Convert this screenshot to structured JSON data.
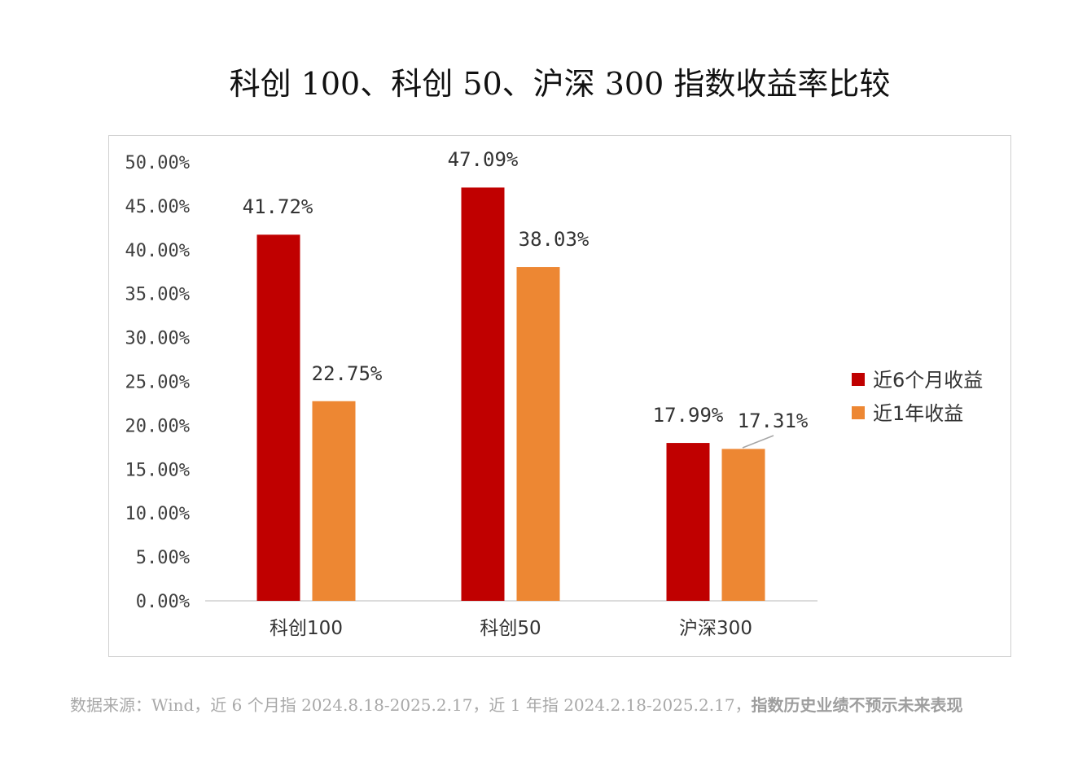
{
  "chart_data": {
    "type": "bar",
    "title": "科创 100、科创 50、沪深 300 指数收益率比较",
    "categories": [
      "科创100",
      "科创50",
      "沪深300"
    ],
    "series": [
      {
        "name": "近6个月收益",
        "color": "#c00000",
        "values": [
          41.72,
          47.09,
          17.99
        ],
        "labels": [
          "41.72%",
          "47.09%",
          "17.99%"
        ]
      },
      {
        "name": "近1年收益",
        "color": "#ed8733",
        "values": [
          22.75,
          38.03,
          17.31
        ],
        "labels": [
          "22.75%",
          "38.03%",
          "17.31%"
        ]
      }
    ],
    "ylim": [
      0,
      50
    ],
    "yticks": [
      "0.00%",
      "5.00%",
      "10.00%",
      "15.00%",
      "20.00%",
      "25.00%",
      "30.00%",
      "35.00%",
      "40.00%",
      "45.00%",
      "50.00%"
    ],
    "xlabel": "",
    "ylabel": "",
    "legend_position": "right",
    "grid": false
  },
  "footnote": {
    "normal": "数据来源：Wind，近 6 个月指 2024.8.18-2025.2.17，近 1 年指 2024.2.18-2025.2.17，",
    "bold": "指数历史业绩不预示未来表现"
  }
}
